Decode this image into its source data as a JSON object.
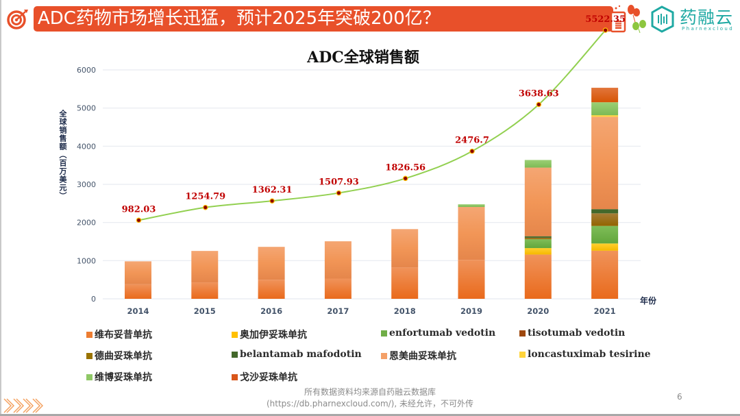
{
  "slide": {
    "title": "ADC药物市场增长迅猛，预计2025年突破200亿？",
    "logo": {
      "cn": "药融云",
      "en": "Pharnexcloud"
    },
    "footer_line1": "所有数据资料均来源自药融云数据库",
    "footer_line2": "(https://db.pharnexcloud.com/), 未经允许，不可外传",
    "page_number": "6",
    "colors": {
      "title_bar": "#e8502a",
      "brand_teal": "#1fa9a3",
      "trend_line": "#92d050",
      "data_label": "#c00000"
    }
  },
  "chart_data": {
    "type": "bar",
    "stacked": true,
    "title": "ADC全球销售额",
    "xlabel": "年份",
    "ylabel": "全球销售额（百万美元）",
    "ylim": [
      0,
      6000
    ],
    "yticks": [
      0,
      1000,
      2000,
      3000,
      4000,
      5000,
      6000
    ],
    "grid": true,
    "legend_position": "bottom",
    "categories": [
      "2014",
      "2015",
      "2016",
      "2017",
      "2018",
      "2019",
      "2020",
      "2021"
    ],
    "series": [
      {
        "name": "维布妥昔单抗",
        "color": "#ed7d31",
        "values": [
          380,
          430,
          500,
          530,
          820,
          1020,
          1160,
          1260
        ]
      },
      {
        "name": "奥加伊妥珠单抗",
        "color": "#ffc000",
        "values": [
          0,
          0,
          0,
          0,
          0,
          0,
          170,
          190
        ]
      },
      {
        "name": "enfortumab vedotin",
        "color": "#70ad47",
        "values": [
          0,
          0,
          0,
          0,
          0,
          0,
          230,
          460
        ]
      },
      {
        "name": "tisotumab vedotin",
        "color": "#9e480e",
        "values": [
          0,
          0,
          0,
          0,
          0,
          0,
          0,
          0
        ]
      },
      {
        "name": "德曲妥珠单抗",
        "color": "#997300",
        "values": [
          0,
          0,
          0,
          0,
          0,
          0,
          40,
          330
        ]
      },
      {
        "name": "belantamab mafodotin",
        "color": "#43682b",
        "values": [
          0,
          0,
          0,
          0,
          0,
          0,
          40,
          110
        ]
      },
      {
        "name": "恩美曲妥珠单抗",
        "color": "#f4a068",
        "values": [
          602,
          825,
          862,
          978,
          1007,
          1387,
          1799,
          2422
        ]
      },
      {
        "name": "loncastuximab tesirine",
        "color": "#ffd43b",
        "values": [
          0,
          0,
          0,
          0,
          0,
          0,
          0,
          40
        ]
      },
      {
        "name": "维博妥珠单抗",
        "color": "#8fc866",
        "values": [
          0,
          0,
          0,
          0,
          0,
          70,
          200,
          340
        ]
      },
      {
        "name": "戈沙妥珠单抗",
        "color": "#d9561a",
        "values": [
          0,
          0,
          0,
          0,
          0,
          0,
          0,
          380
        ]
      }
    ],
    "totals": {
      "name": "总销售额",
      "values": [
        982.03,
        1254.79,
        1362.31,
        1507.93,
        1826.56,
        2476.7,
        3638.63,
        5522.35
      ],
      "labels": [
        "982.03",
        "1254.79",
        "1362.31",
        "1507.93",
        "1826.56",
        "2476.7",
        "3638.63",
        "5522.35"
      ]
    }
  }
}
